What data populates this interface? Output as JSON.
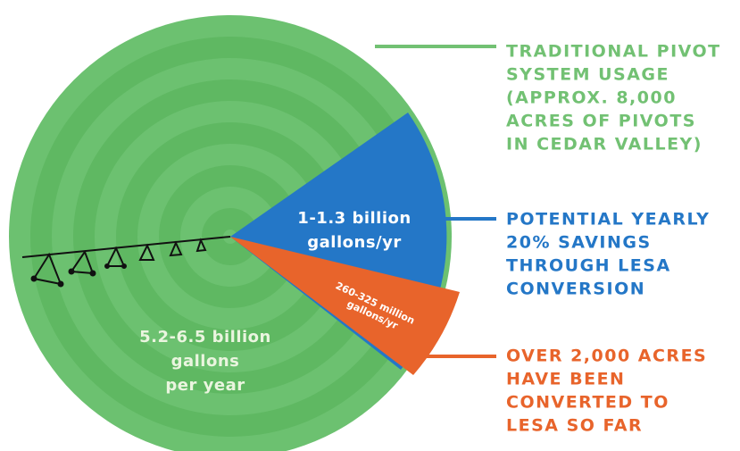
{
  "legend": {
    "traditional": [
      "TRADITIONAL PIVOT",
      "SYSTEM USAGE",
      "(APPROX. 8,000",
      "ACRES OF PIVOTS",
      "IN CEDAR VALLEY)"
    ],
    "savings": [
      "POTENTIAL YEARLY",
      "20% SAVINGS",
      "THROUGH LESA",
      "CONVERSION"
    ],
    "converted": [
      "OVER 2,000 ACRES",
      "HAVE BEEN",
      "CONVERTED TO",
      "LESA SO FAR"
    ]
  },
  "wedges": {
    "savings": [
      "1-1.3 billion",
      "gallons/yr"
    ],
    "converted": [
      "260-325 million",
      "gallons/yr"
    ],
    "total": [
      "5.2-6.5 billion",
      "gallons",
      "per year"
    ]
  }
}
